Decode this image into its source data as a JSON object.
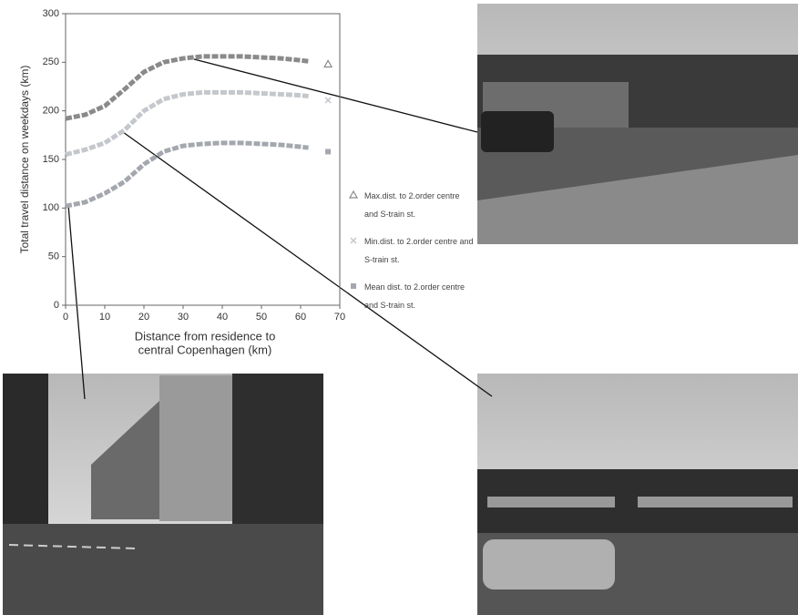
{
  "chart_data": {
    "type": "line",
    "ylabel": "Total travel distance on weekdays (km)",
    "xlabel": [
      "Distance from residence to",
      "central Copenhagen (km)"
    ],
    "x": [
      0,
      5,
      10,
      15,
      20,
      25,
      30,
      35,
      40,
      45,
      50,
      55,
      60,
      62
    ],
    "series": [
      {
        "name": "Max.dist. to 2.order centre and S-train st.",
        "color": "#8a8a8a",
        "marker": "triangle",
        "values": [
          192,
          196,
          205,
          222,
          240,
          250,
          254,
          256,
          256,
          256,
          255,
          254,
          252,
          251
        ],
        "extra_point": {
          "x": 67,
          "value": 248
        }
      },
      {
        "name": "Min.dist. to 2.order centre and S-train st.",
        "color": "#c4c8cc",
        "marker": "cross",
        "values": [
          155,
          160,
          167,
          180,
          200,
          212,
          217,
          219,
          219,
          219,
          218,
          217,
          216,
          215
        ],
        "extra_point": {
          "x": 67,
          "value": 211
        }
      },
      {
        "name": "Mean dist. to 2.order centre and S-train st.",
        "color": "#a4a8ae",
        "marker": "square",
        "values": [
          102,
          106,
          115,
          127,
          145,
          158,
          164,
          166,
          167,
          167,
          166,
          165,
          163,
          162
        ],
        "extra_point": {
          "x": 67,
          "value": 158
        }
      }
    ],
    "xlim": [
      0,
      70
    ],
    "xticks": [
      0,
      10,
      20,
      30,
      40,
      50,
      60,
      70
    ],
    "ylim": [
      0,
      300
    ],
    "yticks": [
      0,
      50,
      100,
      150,
      200,
      250,
      300
    ]
  }
}
